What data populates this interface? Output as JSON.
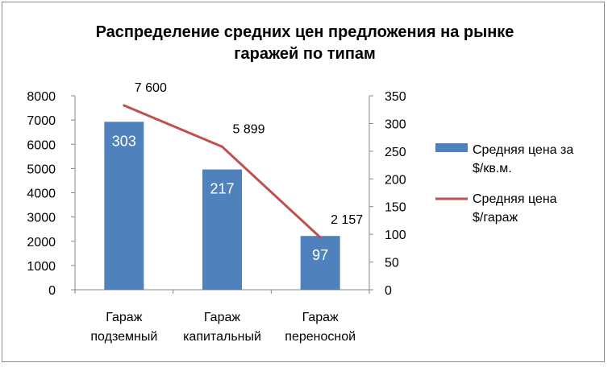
{
  "chart_data": {
    "type": "bar",
    "title_lines": [
      "Распределение средних цен предложения на рынке",
      "гаражей по типам"
    ],
    "categories": [
      [
        "Гараж",
        "подземный"
      ],
      [
        "Гараж",
        "капитальный"
      ],
      [
        "Гараж",
        "переносной"
      ]
    ],
    "series": [
      {
        "name_lines": [
          "Средняя цена за",
          "$/кв.м."
        ],
        "type": "bar",
        "axis": "right",
        "values": [
          303,
          217,
          97
        ],
        "data_labels": [
          "303",
          "217",
          "97"
        ],
        "color": "#4f81bd"
      },
      {
        "name_lines": [
          "Средняя цена",
          "$/гараж"
        ],
        "type": "line",
        "axis": "left",
        "values": [
          7600,
          5899,
          2157
        ],
        "data_labels": [
          "7 600",
          "5 899",
          "2 157"
        ],
        "color": "#c0504d"
      }
    ],
    "y_left": {
      "min": 0,
      "max": 8000,
      "ticks": [
        "0",
        "1000",
        "2000",
        "3000",
        "4000",
        "5000",
        "6000",
        "7000",
        "8000"
      ]
    },
    "y_right": {
      "min": 0,
      "max": 350,
      "ticks": [
        "0",
        "50",
        "100",
        "150",
        "200",
        "250",
        "300",
        "350"
      ]
    },
    "legend_position": "right",
    "grid": false
  }
}
